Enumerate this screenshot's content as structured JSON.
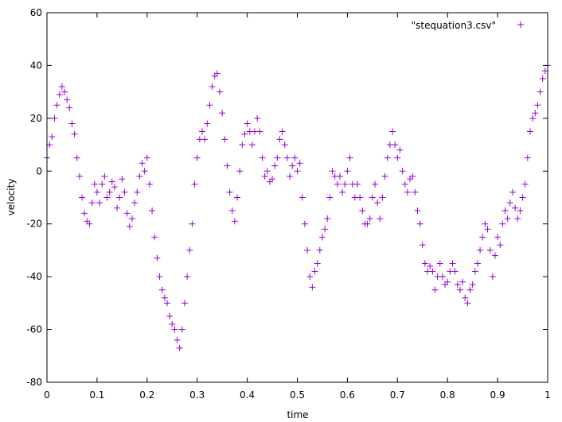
{
  "chart_data": {
    "type": "scatter",
    "xlabel": "time",
    "ylabel": "velocity",
    "xlim": [
      0,
      1
    ],
    "ylim": [
      -80,
      60
    ],
    "xticks": [
      0,
      0.1,
      0.2,
      0.3,
      0.4,
      0.5,
      0.6,
      0.7,
      0.8,
      0.9,
      1
    ],
    "xtick_labels": [
      "0",
      "0.1",
      "0.2",
      "0.3",
      "0.4",
      "0.5",
      "0.6",
      "0.7",
      "0.8",
      "0.9",
      "1"
    ],
    "yticks": [
      -80,
      -60,
      -40,
      -20,
      0,
      20,
      40,
      60
    ],
    "ytick_labels": [
      "-80",
      "-60",
      "-40",
      "-20",
      "0",
      "20",
      "40",
      "60"
    ],
    "grid": false,
    "legend_position": "top-right",
    "marker": "+",
    "series": [
      {
        "name": "\"stequation3.csv\"",
        "color": "#9400d3",
        "points": [
          [
            0.0,
            5
          ],
          [
            0.005,
            10
          ],
          [
            0.01,
            13
          ],
          [
            0.015,
            20
          ],
          [
            0.02,
            25
          ],
          [
            0.025,
            29
          ],
          [
            0.03,
            32
          ],
          [
            0.035,
            30
          ],
          [
            0.04,
            27
          ],
          [
            0.045,
            24
          ],
          [
            0.05,
            18
          ],
          [
            0.055,
            14
          ],
          [
            0.06,
            5
          ],
          [
            0.065,
            -2
          ],
          [
            0.07,
            -10
          ],
          [
            0.075,
            -16
          ],
          [
            0.08,
            -19
          ],
          [
            0.085,
            -20
          ],
          [
            0.09,
            -12
          ],
          [
            0.095,
            -5
          ],
          [
            0.1,
            -8
          ],
          [
            0.105,
            -12
          ],
          [
            0.11,
            -5
          ],
          [
            0.115,
            -2
          ],
          [
            0.12,
            -10
          ],
          [
            0.125,
            -8
          ],
          [
            0.13,
            -4
          ],
          [
            0.135,
            -6
          ],
          [
            0.14,
            -14
          ],
          [
            0.145,
            -10
          ],
          [
            0.15,
            -3
          ],
          [
            0.155,
            -8
          ],
          [
            0.16,
            -16
          ],
          [
            0.165,
            -21
          ],
          [
            0.17,
            -18
          ],
          [
            0.175,
            -12
          ],
          [
            0.18,
            -8
          ],
          [
            0.185,
            -2
          ],
          [
            0.19,
            3
          ],
          [
            0.195,
            0
          ],
          [
            0.2,
            5
          ],
          [
            0.205,
            -5
          ],
          [
            0.21,
            -15
          ],
          [
            0.215,
            -25
          ],
          [
            0.22,
            -33
          ],
          [
            0.225,
            -40
          ],
          [
            0.23,
            -45
          ],
          [
            0.235,
            -48
          ],
          [
            0.24,
            -50
          ],
          [
            0.245,
            -55
          ],
          [
            0.25,
            -58
          ],
          [
            0.255,
            -60
          ],
          [
            0.26,
            -64
          ],
          [
            0.265,
            -67
          ],
          [
            0.27,
            -60
          ],
          [
            0.275,
            -50
          ],
          [
            0.28,
            -40
          ],
          [
            0.285,
            -30
          ],
          [
            0.29,
            -20
          ],
          [
            0.295,
            -5
          ],
          [
            0.3,
            5
          ],
          [
            0.305,
            12
          ],
          [
            0.31,
            15
          ],
          [
            0.315,
            12
          ],
          [
            0.32,
            18
          ],
          [
            0.325,
            25
          ],
          [
            0.33,
            32
          ],
          [
            0.335,
            36
          ],
          [
            0.34,
            37
          ],
          [
            0.345,
            30
          ],
          [
            0.35,
            22
          ],
          [
            0.355,
            12
          ],
          [
            0.36,
            2
          ],
          [
            0.365,
            -8
          ],
          [
            0.37,
            -15
          ],
          [
            0.375,
            -19
          ],
          [
            0.38,
            -10
          ],
          [
            0.385,
            0
          ],
          [
            0.39,
            10
          ],
          [
            0.395,
            14
          ],
          [
            0.4,
            18
          ],
          [
            0.405,
            15
          ],
          [
            0.41,
            10
          ],
          [
            0.415,
            15
          ],
          [
            0.42,
            20
          ],
          [
            0.425,
            15
          ],
          [
            0.43,
            5
          ],
          [
            0.435,
            -2
          ],
          [
            0.44,
            0
          ],
          [
            0.445,
            -4
          ],
          [
            0.45,
            -3
          ],
          [
            0.455,
            2
          ],
          [
            0.46,
            5
          ],
          [
            0.465,
            12
          ],
          [
            0.47,
            15
          ],
          [
            0.475,
            10
          ],
          [
            0.48,
            5
          ],
          [
            0.485,
            -2
          ],
          [
            0.49,
            2
          ],
          [
            0.495,
            5
          ],
          [
            0.5,
            0
          ],
          [
            0.505,
            3
          ],
          [
            0.51,
            -10
          ],
          [
            0.515,
            -20
          ],
          [
            0.52,
            -30
          ],
          [
            0.525,
            -40
          ],
          [
            0.53,
            -44
          ],
          [
            0.535,
            -38
          ],
          [
            0.54,
            -35
          ],
          [
            0.545,
            -30
          ],
          [
            0.55,
            -25
          ],
          [
            0.555,
            -22
          ],
          [
            0.56,
            -18
          ],
          [
            0.565,
            -10
          ],
          [
            0.57,
            0
          ],
          [
            0.575,
            -2
          ],
          [
            0.58,
            -5
          ],
          [
            0.585,
            -2
          ],
          [
            0.59,
            -8
          ],
          [
            0.595,
            -5
          ],
          [
            0.6,
            0
          ],
          [
            0.605,
            5
          ],
          [
            0.61,
            -5
          ],
          [
            0.615,
            -10
          ],
          [
            0.62,
            -5
          ],
          [
            0.625,
            -10
          ],
          [
            0.63,
            -15
          ],
          [
            0.635,
            -20
          ],
          [
            0.64,
            -20
          ],
          [
            0.645,
            -18
          ],
          [
            0.65,
            -10
          ],
          [
            0.655,
            -5
          ],
          [
            0.66,
            -12
          ],
          [
            0.665,
            -18
          ],
          [
            0.67,
            -10
          ],
          [
            0.675,
            -2
          ],
          [
            0.68,
            5
          ],
          [
            0.685,
            10
          ],
          [
            0.69,
            15
          ],
          [
            0.695,
            10
          ],
          [
            0.7,
            5
          ],
          [
            0.705,
            8
          ],
          [
            0.71,
            0
          ],
          [
            0.715,
            -5
          ],
          [
            0.72,
            -8
          ],
          [
            0.725,
            -3
          ],
          [
            0.73,
            -2
          ],
          [
            0.735,
            -8
          ],
          [
            0.74,
            -15
          ],
          [
            0.745,
            -20
          ],
          [
            0.75,
            -28
          ],
          [
            0.755,
            -35
          ],
          [
            0.76,
            -38
          ],
          [
            0.765,
            -36
          ],
          [
            0.77,
            -38
          ],
          [
            0.775,
            -45
          ],
          [
            0.78,
            -40
          ],
          [
            0.785,
            -35
          ],
          [
            0.79,
            -40
          ],
          [
            0.795,
            -43
          ],
          [
            0.8,
            -42
          ],
          [
            0.805,
            -38
          ],
          [
            0.81,
            -35
          ],
          [
            0.815,
            -38
          ],
          [
            0.82,
            -43
          ],
          [
            0.825,
            -45
          ],
          [
            0.83,
            -42
          ],
          [
            0.835,
            -48
          ],
          [
            0.84,
            -50
          ],
          [
            0.845,
            -45
          ],
          [
            0.85,
            -43
          ],
          [
            0.855,
            -38
          ],
          [
            0.86,
            -35
          ],
          [
            0.865,
            -30
          ],
          [
            0.87,
            -25
          ],
          [
            0.875,
            -20
          ],
          [
            0.88,
            -22
          ],
          [
            0.885,
            -30
          ],
          [
            0.89,
            -40
          ],
          [
            0.895,
            -32
          ],
          [
            0.9,
            -25
          ],
          [
            0.905,
            -28
          ],
          [
            0.91,
            -20
          ],
          [
            0.915,
            -15
          ],
          [
            0.92,
            -18
          ],
          [
            0.925,
            -12
          ],
          [
            0.93,
            -8
          ],
          [
            0.935,
            -14
          ],
          [
            0.94,
            -18
          ],
          [
            0.945,
            -15
          ],
          [
            0.95,
            -10
          ],
          [
            0.955,
            -5
          ],
          [
            0.96,
            5
          ],
          [
            0.965,
            15
          ],
          [
            0.97,
            20
          ],
          [
            0.975,
            22
          ],
          [
            0.98,
            25
          ],
          [
            0.985,
            30
          ],
          [
            0.99,
            35
          ],
          [
            0.995,
            38
          ],
          [
            1.0,
            40
          ]
        ]
      }
    ]
  }
}
